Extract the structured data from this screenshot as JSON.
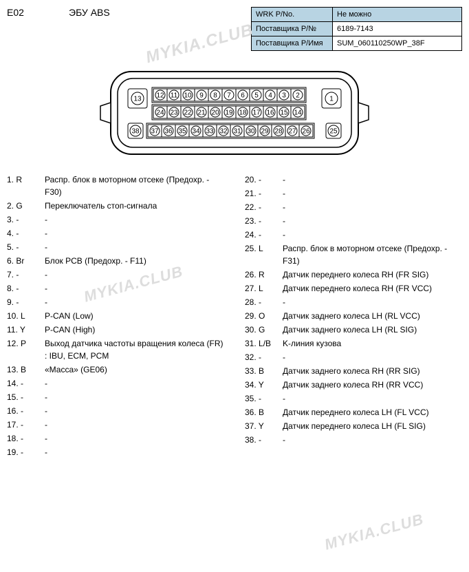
{
  "header": {
    "code": "E02",
    "title": "ЭБУ ABS"
  },
  "info_table": {
    "rows": [
      {
        "label": "WRK P/No.",
        "value": "Не можно"
      },
      {
        "label": "Поставщика Р/№",
        "value": "6189-7143"
      },
      {
        "label": "Поставщика Р/Имя",
        "value": "SUM_060110250WP_38F"
      }
    ]
  },
  "connector": {
    "pin13": 13,
    "pin1": 1,
    "pin38": 38,
    "pin25": 25,
    "row1": [
      12,
      11,
      10,
      9,
      8,
      7,
      6,
      5,
      4,
      3,
      2
    ],
    "row2": [
      24,
      23,
      22,
      21,
      20,
      19,
      18,
      17,
      16,
      15,
      14
    ],
    "row3": [
      37,
      36,
      35,
      34,
      33,
      32,
      31,
      30,
      29,
      28,
      27,
      26
    ],
    "stroke": "#000000",
    "fill": "#ffffff"
  },
  "watermarks": {
    "w1": "MYKIA.CLUB",
    "w2": "MYKIA.CLUB",
    "w3": "MYKIA.CLUB"
  },
  "pins_left": [
    {
      "num": "1. R",
      "desc": "Распр. блок в моторном отсеке (Предохр. - F30)"
    },
    {
      "num": "2. G",
      "desc": "Переключатель стоп-сигнала"
    },
    {
      "num": "3. -",
      "desc": "-"
    },
    {
      "num": "4. -",
      "desc": "-"
    },
    {
      "num": "5. -",
      "desc": "-"
    },
    {
      "num": "6. Br",
      "desc": "Блок PCB (Предохр. - F11)"
    },
    {
      "num": "7. -",
      "desc": "-"
    },
    {
      "num": "8. -",
      "desc": "-"
    },
    {
      "num": "9. -",
      "desc": "-"
    },
    {
      "num": "10. L",
      "desc": "P-CAN (Low)"
    },
    {
      "num": "11. Y",
      "desc": "P-CAN (High)"
    },
    {
      "num": "12. P",
      "desc": "Выход датчика частоты вращения колеса (FR) : IBU, ECM, PCM"
    },
    {
      "num": "13. B",
      "desc": "«Масса» (GE06)"
    },
    {
      "num": "14. -",
      "desc": "-"
    },
    {
      "num": "15. -",
      "desc": "-"
    },
    {
      "num": "16. -",
      "desc": "-"
    },
    {
      "num": "17. -",
      "desc": "-"
    },
    {
      "num": "18. -",
      "desc": "-"
    },
    {
      "num": "19. -",
      "desc": "-"
    }
  ],
  "pins_right": [
    {
      "num": "20. -",
      "desc": "-"
    },
    {
      "num": "21. -",
      "desc": "-"
    },
    {
      "num": "22. -",
      "desc": "-"
    },
    {
      "num": "23. -",
      "desc": "-"
    },
    {
      "num": "24. -",
      "desc": "-"
    },
    {
      "num": "25. L",
      "desc": "Распр. блок в моторном отсеке (Предохр. - F31)"
    },
    {
      "num": "26. R",
      "desc": "Датчик переднего колеса RH (FR SIG)"
    },
    {
      "num": "27. L",
      "desc": "Датчик переднего колеса RH (FR VCC)"
    },
    {
      "num": "28. -",
      "desc": "-"
    },
    {
      "num": "29. O",
      "desc": "Датчик заднего колеса LH (RL VCC)"
    },
    {
      "num": "30. G",
      "desc": "Датчик заднего колеса LH (RL SIG)"
    },
    {
      "num": "31. L/B",
      "desc": "K-линия кузова"
    },
    {
      "num": "32. -",
      "desc": "-"
    },
    {
      "num": "33. B",
      "desc": "Датчик заднего колеса RH (RR SIG)"
    },
    {
      "num": "34. Y",
      "desc": "Датчик заднего колеса RH (RR VCC)"
    },
    {
      "num": "35. -",
      "desc": "-"
    },
    {
      "num": "36. B",
      "desc": "Датчик переднего колеса LH (FL VCC)"
    },
    {
      "num": "37. Y",
      "desc": "Датчик переднего колеса LH (FL SIG)"
    },
    {
      "num": "38. -",
      "desc": "-"
    }
  ]
}
